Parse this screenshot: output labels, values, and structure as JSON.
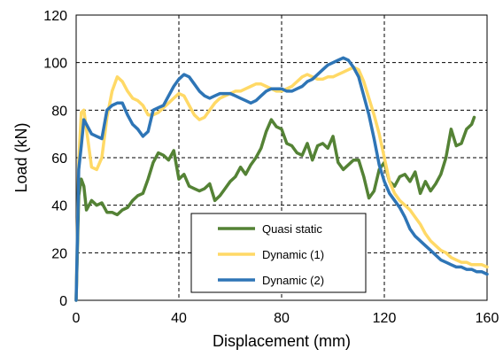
{
  "chart_data": {
    "type": "line",
    "title": "",
    "xlabel": "Displacement (mm)",
    "ylabel": "Load (kN)",
    "xlim": [
      0,
      160
    ],
    "ylim": [
      0,
      120
    ],
    "xticks": [
      0,
      40,
      80,
      120,
      160
    ],
    "yticks": [
      0,
      20,
      40,
      60,
      80,
      100,
      120
    ],
    "grid": "dashed",
    "legend_position": "bottom-center",
    "series": [
      {
        "name": "Quasi static",
        "color": "#548235",
        "points": [
          [
            0,
            0
          ],
          [
            1,
            44
          ],
          [
            2,
            51
          ],
          [
            3,
            48
          ],
          [
            4,
            38
          ],
          [
            6,
            42
          ],
          [
            8,
            40
          ],
          [
            10,
            41
          ],
          [
            12,
            37
          ],
          [
            14,
            37
          ],
          [
            16,
            36
          ],
          [
            18,
            38
          ],
          [
            20,
            39
          ],
          [
            22,
            42
          ],
          [
            24,
            44
          ],
          [
            26,
            45
          ],
          [
            28,
            51
          ],
          [
            30,
            58
          ],
          [
            32,
            62
          ],
          [
            34,
            61
          ],
          [
            36,
            59
          ],
          [
            38,
            63
          ],
          [
            40,
            51
          ],
          [
            42,
            53
          ],
          [
            44,
            48
          ],
          [
            46,
            47
          ],
          [
            48,
            46
          ],
          [
            50,
            47
          ],
          [
            52,
            49
          ],
          [
            54,
            42
          ],
          [
            56,
            44
          ],
          [
            58,
            47
          ],
          [
            60,
            50
          ],
          [
            62,
            52
          ],
          [
            64,
            56
          ],
          [
            66,
            53
          ],
          [
            68,
            57
          ],
          [
            70,
            60
          ],
          [
            72,
            64
          ],
          [
            74,
            71
          ],
          [
            76,
            76
          ],
          [
            78,
            73
          ],
          [
            80,
            72
          ],
          [
            82,
            66
          ],
          [
            84,
            65
          ],
          [
            86,
            62
          ],
          [
            88,
            61
          ],
          [
            90,
            66
          ],
          [
            92,
            59
          ],
          [
            94,
            65
          ],
          [
            96,
            66
          ],
          [
            98,
            64
          ],
          [
            100,
            69
          ],
          [
            102,
            58
          ],
          [
            104,
            55
          ],
          [
            106,
            57
          ],
          [
            108,
            59
          ],
          [
            110,
            59
          ],
          [
            112,
            52
          ],
          [
            114,
            43
          ],
          [
            116,
            46
          ],
          [
            118,
            55
          ],
          [
            120,
            58
          ],
          [
            122,
            50
          ],
          [
            124,
            48
          ],
          [
            126,
            52
          ],
          [
            128,
            53
          ],
          [
            130,
            50
          ],
          [
            132,
            54
          ],
          [
            134,
            45
          ],
          [
            136,
            50
          ],
          [
            138,
            46
          ],
          [
            140,
            49
          ],
          [
            142,
            53
          ],
          [
            144,
            60
          ],
          [
            146,
            72
          ],
          [
            148,
            65
          ],
          [
            150,
            66
          ],
          [
            152,
            72
          ],
          [
            154,
            74
          ],
          [
            155,
            77
          ]
        ]
      },
      {
        "name": "Dynamic (1)",
        "color": "#FFD966",
        "points": [
          [
            0,
            0
          ],
          [
            1,
            58
          ],
          [
            2,
            79
          ],
          [
            3,
            80
          ],
          [
            4,
            72
          ],
          [
            6,
            56
          ],
          [
            8,
            55
          ],
          [
            10,
            60
          ],
          [
            12,
            77
          ],
          [
            14,
            88
          ],
          [
            16,
            94
          ],
          [
            18,
            92
          ],
          [
            20,
            88
          ],
          [
            22,
            85
          ],
          [
            24,
            84
          ],
          [
            26,
            82
          ],
          [
            28,
            78
          ],
          [
            30,
            78
          ],
          [
            32,
            79
          ],
          [
            34,
            81
          ],
          [
            36,
            83
          ],
          [
            38,
            85
          ],
          [
            40,
            87
          ],
          [
            42,
            86
          ],
          [
            44,
            82
          ],
          [
            46,
            78
          ],
          [
            48,
            76
          ],
          [
            50,
            77
          ],
          [
            52,
            80
          ],
          [
            54,
            83
          ],
          [
            56,
            85
          ],
          [
            58,
            86
          ],
          [
            60,
            87
          ],
          [
            62,
            88
          ],
          [
            64,
            88
          ],
          [
            66,
            89
          ],
          [
            68,
            90
          ],
          [
            70,
            91
          ],
          [
            72,
            91
          ],
          [
            74,
            90
          ],
          [
            76,
            89
          ],
          [
            78,
            88
          ],
          [
            80,
            88
          ],
          [
            82,
            89
          ],
          [
            84,
            90
          ],
          [
            86,
            92
          ],
          [
            88,
            94
          ],
          [
            90,
            95
          ],
          [
            92,
            94
          ],
          [
            94,
            93
          ],
          [
            96,
            93
          ],
          [
            98,
            94
          ],
          [
            100,
            94
          ],
          [
            102,
            95
          ],
          [
            104,
            96
          ],
          [
            106,
            97
          ],
          [
            108,
            98
          ],
          [
            110,
            97
          ],
          [
            112,
            92
          ],
          [
            114,
            85
          ],
          [
            116,
            78
          ],
          [
            118,
            70
          ],
          [
            120,
            60
          ],
          [
            122,
            50
          ],
          [
            124,
            45
          ],
          [
            126,
            42
          ],
          [
            128,
            40
          ],
          [
            130,
            38
          ],
          [
            132,
            35
          ],
          [
            134,
            32
          ],
          [
            136,
            28
          ],
          [
            138,
            25
          ],
          [
            140,
            23
          ],
          [
            142,
            21
          ],
          [
            144,
            20
          ],
          [
            146,
            18
          ],
          [
            148,
            17
          ],
          [
            150,
            16
          ],
          [
            152,
            16
          ],
          [
            154,
            15
          ],
          [
            156,
            15
          ],
          [
            158,
            15
          ],
          [
            160,
            14
          ]
        ]
      },
      {
        "name": "Dynamic (2)",
        "color": "#2E75B6",
        "points": [
          [
            0,
            0
          ],
          [
            1,
            55
          ],
          [
            2,
            65
          ],
          [
            3,
            76
          ],
          [
            4,
            74
          ],
          [
            5,
            72
          ],
          [
            6,
            70
          ],
          [
            8,
            69
          ],
          [
            10,
            68
          ],
          [
            12,
            80
          ],
          [
            14,
            82
          ],
          [
            16,
            83
          ],
          [
            18,
            83
          ],
          [
            20,
            78
          ],
          [
            22,
            74
          ],
          [
            24,
            72
          ],
          [
            26,
            69
          ],
          [
            28,
            71
          ],
          [
            30,
            80
          ],
          [
            32,
            81
          ],
          [
            34,
            82
          ],
          [
            36,
            86
          ],
          [
            38,
            90
          ],
          [
            40,
            93
          ],
          [
            42,
            95
          ],
          [
            44,
            94
          ],
          [
            46,
            91
          ],
          [
            48,
            88
          ],
          [
            50,
            86
          ],
          [
            52,
            85
          ],
          [
            54,
            86
          ],
          [
            56,
            87
          ],
          [
            58,
            87
          ],
          [
            60,
            87
          ],
          [
            62,
            86
          ],
          [
            64,
            85
          ],
          [
            66,
            84
          ],
          [
            68,
            83
          ],
          [
            70,
            84
          ],
          [
            72,
            86
          ],
          [
            74,
            88
          ],
          [
            76,
            89
          ],
          [
            78,
            89
          ],
          [
            80,
            89
          ],
          [
            82,
            88
          ],
          [
            84,
            88
          ],
          [
            86,
            89
          ],
          [
            88,
            90
          ],
          [
            90,
            92
          ],
          [
            92,
            93
          ],
          [
            94,
            95
          ],
          [
            96,
            97
          ],
          [
            98,
            99
          ],
          [
            100,
            100
          ],
          [
            102,
            101
          ],
          [
            104,
            102
          ],
          [
            106,
            101
          ],
          [
            108,
            98
          ],
          [
            110,
            94
          ],
          [
            112,
            86
          ],
          [
            114,
            78
          ],
          [
            116,
            68
          ],
          [
            118,
            57
          ],
          [
            120,
            50
          ],
          [
            122,
            45
          ],
          [
            124,
            42
          ],
          [
            126,
            39
          ],
          [
            128,
            35
          ],
          [
            130,
            30
          ],
          [
            132,
            27
          ],
          [
            134,
            25
          ],
          [
            136,
            23
          ],
          [
            138,
            21
          ],
          [
            140,
            19
          ],
          [
            142,
            17
          ],
          [
            144,
            16
          ],
          [
            146,
            15
          ],
          [
            148,
            14
          ],
          [
            150,
            14
          ],
          [
            152,
            13
          ],
          [
            154,
            13
          ],
          [
            156,
            12
          ],
          [
            158,
            12
          ],
          [
            160,
            11
          ]
        ]
      }
    ]
  }
}
